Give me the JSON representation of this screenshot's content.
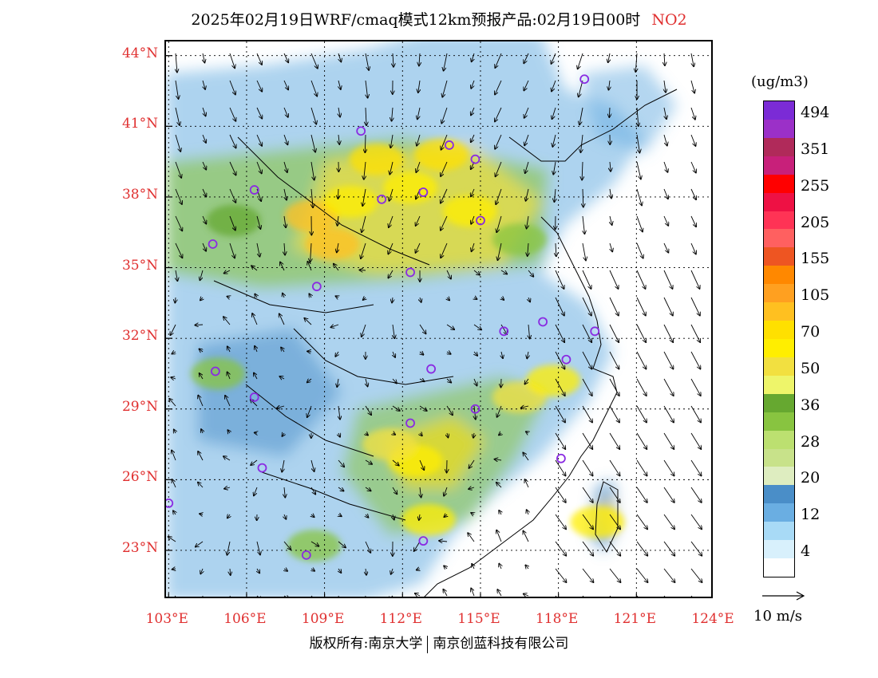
{
  "title": {
    "main": "2025年02月19日WRF/cmaq模式12km预报产品:02月19日00时",
    "pollutant": "NO2"
  },
  "colors": {
    "label_red": "#e03030",
    "station_marker": "#8a2be2",
    "land_low": "#d6eefa"
  },
  "axes": {
    "lat_labels": [
      "44°N",
      "41°N",
      "38°N",
      "35°N",
      "32°N",
      "29°N",
      "26°N",
      "23°N"
    ],
    "lon_labels": [
      "103°E",
      "106°E",
      "109°E",
      "112°E",
      "115°E",
      "118°E",
      "121°E",
      "124°E"
    ],
    "lat_values": [
      44,
      41,
      38,
      35,
      32,
      29,
      26,
      23
    ],
    "lon_values": [
      103,
      106,
      109,
      112,
      115,
      118,
      121,
      124
    ],
    "lat_range": [
      20.9,
      44.6
    ],
    "lon_range": [
      102.9,
      124.0
    ]
  },
  "legend": {
    "unit": "(ug/m3)",
    "levels": [
      {
        "label": "494",
        "color": "#7b2bd6"
      },
      {
        "label": "",
        "color": "#9b30c8"
      },
      {
        "label": "351",
        "color": "#b02a5a"
      },
      {
        "label": "",
        "color": "#c8207a"
      },
      {
        "label": "255",
        "color": "#ff0000"
      },
      {
        "label": "",
        "color": "#ee1144"
      },
      {
        "label": "205",
        "color": "#ff3355"
      },
      {
        "label": "",
        "color": "#ff6060"
      },
      {
        "label": "155",
        "color": "#ee5522"
      },
      {
        "label": "",
        "color": "#ff8800"
      },
      {
        "label": "105",
        "color": "#ffa020"
      },
      {
        "label": "",
        "color": "#ffc020"
      },
      {
        "label": "70",
        "color": "#ffe000"
      },
      {
        "label": "",
        "color": "#ffee00"
      },
      {
        "label": "50",
        "color": "#f2e040"
      },
      {
        "label": "",
        "color": "#eef56a"
      },
      {
        "label": "36",
        "color": "#66a830"
      },
      {
        "label": "",
        "color": "#88c440"
      },
      {
        "label": "28",
        "color": "#bce070"
      },
      {
        "label": "",
        "color": "#c8e28a"
      },
      {
        "label": "20",
        "color": "#deedc0"
      },
      {
        "label": "",
        "color": "#4a8ec8"
      },
      {
        "label": "12",
        "color": "#6aaee2"
      },
      {
        "label": "",
        "color": "#a8daf6"
      },
      {
        "label": "4",
        "color": "#d8f0fc"
      },
      {
        "label": "",
        "color": "#ffffff"
      }
    ]
  },
  "wind_reference": "10 m/s",
  "copyright": {
    "left": "版权所有:南京大学",
    "right": "南京创蓝科技有限公司"
  },
  "stations": [
    {
      "lon": 119.0,
      "lat": 43.0
    },
    {
      "lon": 110.4,
      "lat": 40.8
    },
    {
      "lon": 113.8,
      "lat": 40.2
    },
    {
      "lon": 114.8,
      "lat": 39.6
    },
    {
      "lon": 106.3,
      "lat": 38.3
    },
    {
      "lon": 111.2,
      "lat": 37.9
    },
    {
      "lon": 112.8,
      "lat": 38.2
    },
    {
      "lon": 115.0,
      "lat": 37.0
    },
    {
      "lon": 104.7,
      "lat": 36.0
    },
    {
      "lon": 112.3,
      "lat": 34.8
    },
    {
      "lon": 108.7,
      "lat": 34.2
    },
    {
      "lon": 115.9,
      "lat": 32.3
    },
    {
      "lon": 117.4,
      "lat": 32.7
    },
    {
      "lon": 119.4,
      "lat": 32.3
    },
    {
      "lon": 118.3,
      "lat": 31.1
    },
    {
      "lon": 104.8,
      "lat": 30.6
    },
    {
      "lon": 113.1,
      "lat": 30.7
    },
    {
      "lon": 106.3,
      "lat": 29.5
    },
    {
      "lon": 114.8,
      "lat": 29.0
    },
    {
      "lon": 112.3,
      "lat": 28.4
    },
    {
      "lon": 106.6,
      "lat": 26.5
    },
    {
      "lon": 118.1,
      "lat": 26.9
    },
    {
      "lon": 103.0,
      "lat": 25.0
    },
    {
      "lon": 108.3,
      "lat": 22.8
    },
    {
      "lon": 112.8,
      "lat": 23.4
    }
  ],
  "hotspots": [
    {
      "lon": 108.5,
      "lat": 37.2,
      "level": 11
    },
    {
      "lon": 110.0,
      "lat": 37.8,
      "level": 13
    },
    {
      "lon": 112.3,
      "lat": 38.4,
      "level": 13
    },
    {
      "lon": 114.6,
      "lat": 37.4,
      "level": 13
    },
    {
      "lon": 111.0,
      "lat": 39.6,
      "level": 12
    },
    {
      "lon": 113.5,
      "lat": 39.8,
      "level": 12
    },
    {
      "lon": 109.3,
      "lat": 36.0,
      "level": 11
    },
    {
      "lon": 105.5,
      "lat": 37.0,
      "level": 16
    },
    {
      "lon": 116.5,
      "lat": 36.2,
      "level": 17
    },
    {
      "lon": 112.5,
      "lat": 26.8,
      "level": 13
    },
    {
      "lon": 111.5,
      "lat": 27.5,
      "level": 14
    },
    {
      "lon": 113.0,
      "lat": 24.3,
      "level": 13
    },
    {
      "lon": 116.5,
      "lat": 29.5,
      "level": 14
    },
    {
      "lon": 117.8,
      "lat": 30.2,
      "level": 13
    },
    {
      "lon": 119.5,
      "lat": 24.2,
      "level": 13
    },
    {
      "lon": 104.9,
      "lat": 30.5,
      "level": 17
    },
    {
      "lon": 108.6,
      "lat": 23.2,
      "level": 17
    }
  ]
}
